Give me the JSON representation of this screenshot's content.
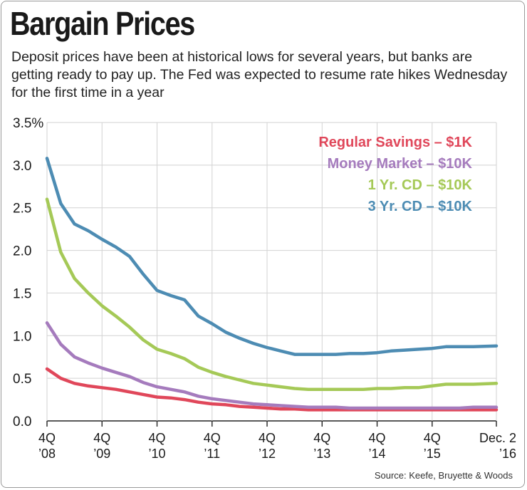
{
  "title": "Bargain Prices",
  "subtitle": "Deposit prices have been at historical lows for several years, but banks are getting ready to pay up. The Fed was expected to resume rate hikes Wednesday for the first time in a year",
  "source": "Source: Keefe, Bruyette & Woods",
  "chart_data": {
    "type": "line",
    "xlim": [
      0,
      32.67
    ],
    "ylim": [
      0,
      3.5
    ],
    "yticks": [
      {
        "value": 0,
        "label": "0.0"
      },
      {
        "value": 0.5,
        "label": "0.5"
      },
      {
        "value": 1,
        "label": "1.0"
      },
      {
        "value": 1.5,
        "label": "1.5"
      },
      {
        "value": 2,
        "label": "2.0"
      },
      {
        "value": 2.5,
        "label": "2.5"
      },
      {
        "value": 3,
        "label": "3.0"
      },
      {
        "value": 3.5,
        "label": "3.5%"
      }
    ],
    "xticks": [
      {
        "x": 0,
        "line1": "4Q",
        "line2": "’08"
      },
      {
        "x": 4,
        "line1": "4Q",
        "line2": "’09"
      },
      {
        "x": 8,
        "line1": "4Q",
        "line2": "’10"
      },
      {
        "x": 12,
        "line1": "4Q",
        "line2": "’11"
      },
      {
        "x": 16,
        "line1": "4Q",
        "line2": "’12"
      },
      {
        "x": 20,
        "line1": "4Q",
        "line2": "’13"
      },
      {
        "x": 24,
        "line1": "4Q",
        "line2": "’14"
      },
      {
        "x": 28,
        "line1": "4Q",
        "line2": "’15"
      },
      {
        "x": 32.67,
        "line1": "Dec. 2",
        "line2": "’16"
      }
    ],
    "grid": true,
    "legend": "top-right",
    "series": [
      {
        "name": "Regular Savings – $1K",
        "color": "#e0475a",
        "x": [
          0,
          1,
          2,
          3,
          4,
          5,
          6,
          7,
          8,
          9,
          10,
          11,
          12,
          13,
          14,
          15,
          16,
          17,
          18,
          19,
          20,
          21,
          22,
          23,
          24,
          25,
          26,
          27,
          28,
          29,
          30,
          31,
          32.67
        ],
        "values": [
          0.61,
          0.5,
          0.44,
          0.41,
          0.39,
          0.37,
          0.34,
          0.31,
          0.28,
          0.27,
          0.25,
          0.22,
          0.2,
          0.19,
          0.17,
          0.16,
          0.15,
          0.14,
          0.14,
          0.13,
          0.13,
          0.13,
          0.13,
          0.13,
          0.13,
          0.13,
          0.13,
          0.13,
          0.13,
          0.13,
          0.13,
          0.13,
          0.13
        ]
      },
      {
        "name": "Money Market – $10K",
        "color": "#a57bbd",
        "x": [
          0,
          1,
          2,
          3,
          4,
          5,
          6,
          7,
          8,
          9,
          10,
          11,
          12,
          13,
          14,
          15,
          16,
          17,
          18,
          19,
          20,
          21,
          22,
          23,
          24,
          25,
          26,
          27,
          28,
          29,
          30,
          31,
          32.67
        ],
        "values": [
          1.15,
          0.9,
          0.75,
          0.68,
          0.62,
          0.57,
          0.52,
          0.45,
          0.4,
          0.37,
          0.34,
          0.29,
          0.26,
          0.24,
          0.22,
          0.2,
          0.19,
          0.18,
          0.17,
          0.16,
          0.16,
          0.16,
          0.15,
          0.15,
          0.15,
          0.15,
          0.15,
          0.15,
          0.15,
          0.15,
          0.15,
          0.16,
          0.16
        ]
      },
      {
        "name": "1 Yr. CD – $10K",
        "color": "#a5c957",
        "x": [
          0,
          1,
          2,
          3,
          4,
          5,
          6,
          7,
          8,
          9,
          10,
          11,
          12,
          13,
          14,
          15,
          16,
          17,
          18,
          19,
          20,
          21,
          22,
          23,
          24,
          25,
          26,
          27,
          28,
          29,
          30,
          31,
          32.67
        ],
        "values": [
          2.6,
          1.98,
          1.67,
          1.5,
          1.35,
          1.23,
          1.1,
          0.95,
          0.84,
          0.79,
          0.73,
          0.63,
          0.57,
          0.52,
          0.48,
          0.44,
          0.42,
          0.4,
          0.38,
          0.37,
          0.37,
          0.37,
          0.37,
          0.37,
          0.38,
          0.38,
          0.39,
          0.39,
          0.41,
          0.43,
          0.43,
          0.43,
          0.44
        ]
      },
      {
        "name": "3 Yr. CD – $10K",
        "color": "#4d8cb3",
        "x": [
          0,
          1,
          2,
          3,
          4,
          5,
          6,
          7,
          8,
          9,
          10,
          11,
          12,
          13,
          14,
          15,
          16,
          17,
          18,
          19,
          20,
          21,
          22,
          23,
          24,
          25,
          26,
          27,
          28,
          29,
          30,
          31,
          32.67
        ],
        "values": [
          3.08,
          2.55,
          2.31,
          2.23,
          2.13,
          2.04,
          1.93,
          1.72,
          1.53,
          1.47,
          1.42,
          1.23,
          1.14,
          1.04,
          0.97,
          0.91,
          0.86,
          0.82,
          0.78,
          0.78,
          0.78,
          0.78,
          0.79,
          0.79,
          0.8,
          0.82,
          0.83,
          0.84,
          0.85,
          0.87,
          0.87,
          0.87,
          0.88
        ]
      }
    ]
  }
}
